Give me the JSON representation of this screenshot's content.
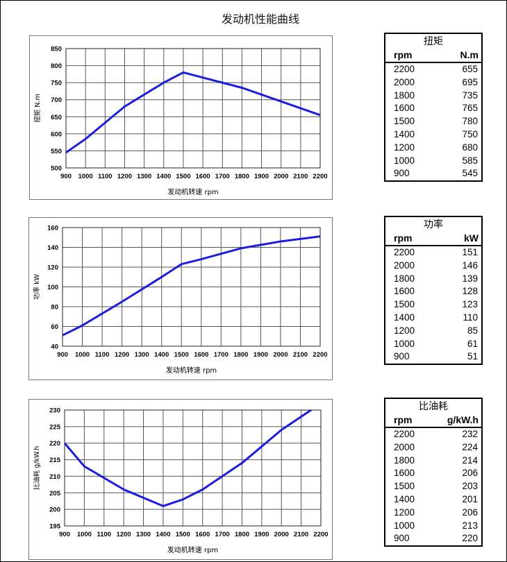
{
  "title": "发动机性能曲线",
  "colors": {
    "line": "#1c1ce0",
    "grid": "#555555",
    "frame": "#777777"
  },
  "chart_data": [
    {
      "type": "line",
      "title": "",
      "xlabel": "发动机转速 rpm",
      "ylabel": "扭矩 N.m",
      "x": [
        900,
        1000,
        1200,
        1400,
        1500,
        1600,
        1800,
        2000,
        2200
      ],
      "values": [
        545,
        585,
        680,
        750,
        780,
        765,
        735,
        695,
        655
      ],
      "xlim": [
        900,
        2200
      ],
      "ylim": [
        500,
        850
      ],
      "xticks": [
        900,
        1000,
        1100,
        1200,
        1300,
        1400,
        1500,
        1600,
        1700,
        1800,
        1900,
        2000,
        2100,
        2200
      ],
      "yticks": [
        500,
        550,
        600,
        650,
        700,
        750,
        800,
        850
      ],
      "grid": true,
      "legend": "none"
    },
    {
      "type": "line",
      "title": "",
      "xlabel": "发动机转速 rpm",
      "ylabel": "功率 kW",
      "x": [
        900,
        1000,
        1200,
        1400,
        1500,
        1600,
        1800,
        2000,
        2200
      ],
      "values": [
        51,
        61,
        85,
        110,
        123,
        128,
        139,
        146,
        151
      ],
      "xlim": [
        900,
        2200
      ],
      "ylim": [
        40,
        160
      ],
      "xticks": [
        900,
        1000,
        1100,
        1200,
        1300,
        1400,
        1500,
        1600,
        1700,
        1800,
        1900,
        2000,
        2100,
        2200
      ],
      "yticks": [
        40,
        60,
        80,
        100,
        120,
        140,
        160
      ],
      "grid": true,
      "legend": "none"
    },
    {
      "type": "line",
      "title": "",
      "xlabel": "发动机转速 rpm",
      "ylabel": "比油耗 g/kW.h",
      "x": [
        900,
        1000,
        1200,
        1400,
        1500,
        1600,
        1800,
        2000,
        2200
      ],
      "values": [
        220,
        213,
        206,
        201,
        203,
        206,
        214,
        224,
        232
      ],
      "xlim": [
        900,
        2200
      ],
      "ylim": [
        195,
        230
      ],
      "xticks": [
        900,
        1000,
        1100,
        1200,
        1300,
        1400,
        1500,
        1600,
        1700,
        1800,
        1900,
        2000,
        2100,
        2200
      ],
      "yticks": [
        195,
        200,
        205,
        210,
        215,
        220,
        225,
        230
      ],
      "grid": true,
      "legend": "none"
    }
  ],
  "tables": [
    {
      "title": "扭矩",
      "col1": "rpm",
      "col2": "N.m",
      "rows": [
        [
          "2200",
          "655"
        ],
        [
          "2000",
          "695"
        ],
        [
          "1800",
          "735"
        ],
        [
          "1600",
          "765"
        ],
        [
          "1500",
          "780"
        ],
        [
          "1400",
          "750"
        ],
        [
          "1200",
          "680"
        ],
        [
          "1000",
          "585"
        ],
        [
          "900",
          "545"
        ]
      ]
    },
    {
      "title": "功率",
      "col1": "rpm",
      "col2": "kW",
      "rows": [
        [
          "2200",
          "151"
        ],
        [
          "2000",
          "146"
        ],
        [
          "1800",
          "139"
        ],
        [
          "1600",
          "128"
        ],
        [
          "1500",
          "123"
        ],
        [
          "1400",
          "110"
        ],
        [
          "1200",
          "85"
        ],
        [
          "1000",
          "61"
        ],
        [
          "900",
          "51"
        ]
      ]
    },
    {
      "title": "比油耗",
      "col1": "rpm",
      "col2": "g/kW.h",
      "rows": [
        [
          "2200",
          "232"
        ],
        [
          "2000",
          "224"
        ],
        [
          "1800",
          "214"
        ],
        [
          "1600",
          "206"
        ],
        [
          "1500",
          "203"
        ],
        [
          "1400",
          "201"
        ],
        [
          "1200",
          "206"
        ],
        [
          "1000",
          "213"
        ],
        [
          "900",
          "220"
        ]
      ]
    }
  ]
}
